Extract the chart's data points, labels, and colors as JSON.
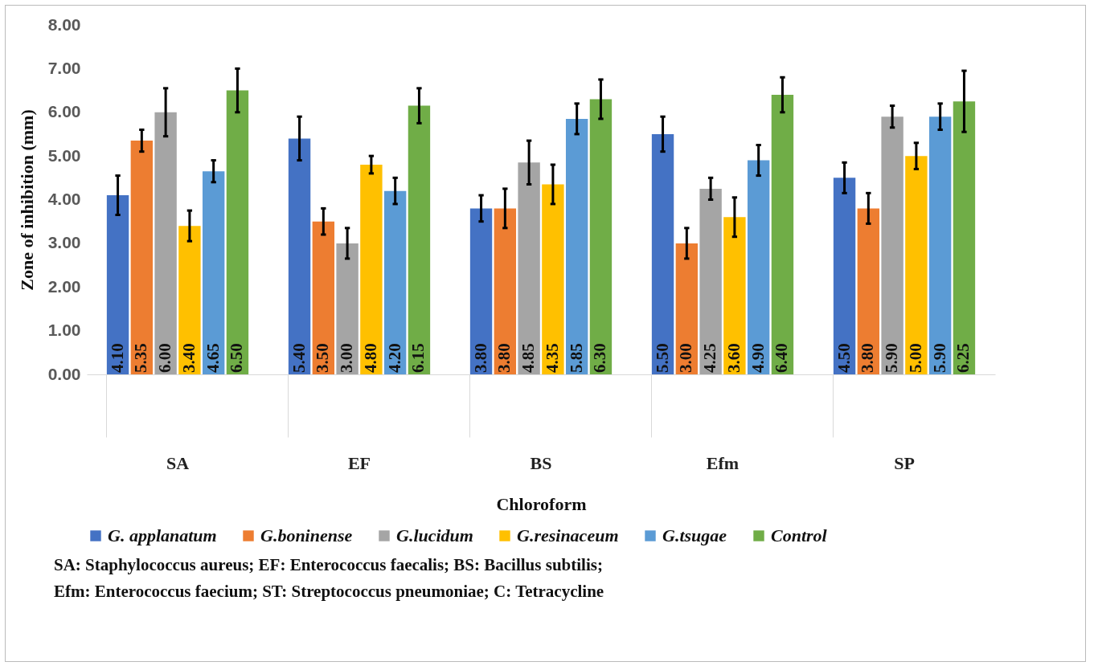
{
  "chart_data": {
    "type": "bar",
    "xlabel": "Chloroform",
    "ylabel": "Zone of inhibition (mm)",
    "categories": [
      "SA",
      "EF",
      "BS",
      "Efm",
      "SP"
    ],
    "series": [
      {
        "name": "G. applanatum",
        "color": "#4472c4",
        "values": [
          4.1,
          5.4,
          3.8,
          5.5,
          4.5
        ],
        "value_labels": [
          "4.10",
          "5.40",
          "3.80",
          "5.50",
          "4.50"
        ],
        "errors": [
          0.45,
          0.5,
          0.3,
          0.4,
          0.35
        ]
      },
      {
        "name": "G.boninense",
        "color": "#ed7d31",
        "values": [
          5.35,
          3.5,
          3.8,
          3.0,
          3.8
        ],
        "value_labels": [
          "5.35",
          "3.50",
          "3.80",
          "3.00",
          "3.80"
        ],
        "errors": [
          0.25,
          0.3,
          0.45,
          0.35,
          0.35
        ]
      },
      {
        "name": "G.lucidum",
        "color": "#a5a5a5",
        "values": [
          6.0,
          3.0,
          4.85,
          4.25,
          5.9
        ],
        "value_labels": [
          "6.00",
          "3.00",
          "4.85",
          "4.25",
          "5.90"
        ],
        "errors": [
          0.55,
          0.35,
          0.5,
          0.25,
          0.25
        ]
      },
      {
        "name": "G.resinaceum",
        "color": "#ffc000",
        "values": [
          3.4,
          4.8,
          4.35,
          3.6,
          5.0
        ],
        "value_labels": [
          "3.40",
          "4.80",
          "4.35",
          "3.60",
          "5.00"
        ],
        "errors": [
          0.35,
          0.2,
          0.45,
          0.45,
          0.3
        ]
      },
      {
        "name": "G.tsugae",
        "color": "#5b9bd5",
        "values": [
          4.65,
          4.2,
          5.85,
          4.9,
          5.9
        ],
        "value_labels": [
          "4.65",
          "4.20",
          "5.85",
          "4.90",
          "5.90"
        ],
        "errors": [
          0.25,
          0.3,
          0.35,
          0.35,
          0.3
        ]
      },
      {
        "name": "Control",
        "color": "#70ad47",
        "values": [
          6.5,
          6.15,
          6.3,
          6.4,
          6.25
        ],
        "value_labels": [
          "6.50",
          "6.15",
          "6.30",
          "6.40",
          "6.25"
        ],
        "errors": [
          0.5,
          0.4,
          0.45,
          0.4,
          0.7
        ]
      }
    ],
    "ylim": [
      0,
      8
    ],
    "yticks": [
      {
        "value": 0,
        "label": "0.00"
      },
      {
        "value": 1,
        "label": "1.00"
      },
      {
        "value": 2,
        "label": "2.00"
      },
      {
        "value": 3,
        "label": "3.00"
      },
      {
        "value": 4,
        "label": "4.00"
      },
      {
        "value": 5,
        "label": "5.00"
      },
      {
        "value": 6,
        "label": "6.00"
      },
      {
        "value": 7,
        "label": "7.00"
      },
      {
        "value": 8,
        "label": "8.00"
      }
    ],
    "grid": false,
    "legend": "bottom",
    "annotations": [
      "SA: Staphylococcus aureus; EF: Enterococcus faecalis; BS: Bacillus subtilis;",
      "Efm: Enterococcus faecium; ST: Streptococcus pneumoniae; C: Tetracycline"
    ]
  }
}
